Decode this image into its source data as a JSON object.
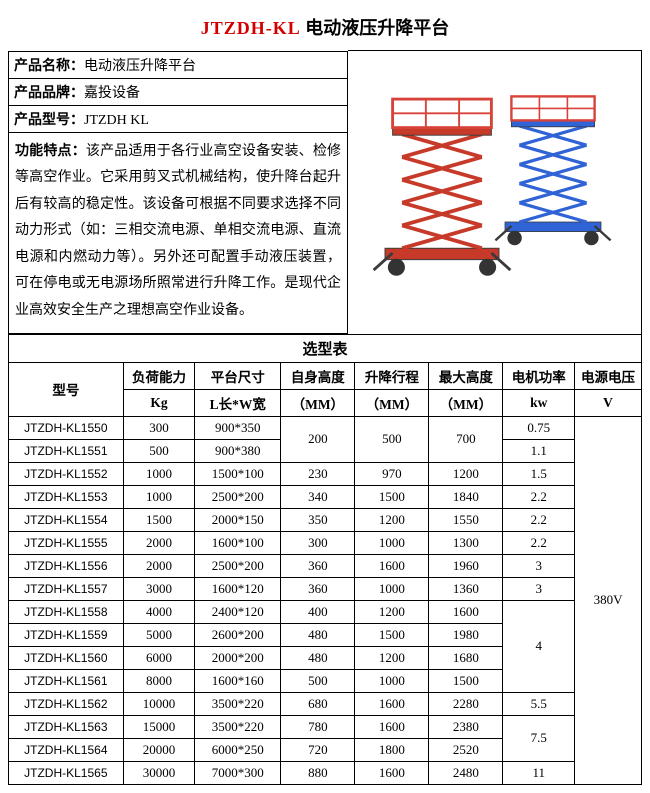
{
  "title_code": "JTZDH-KL",
  "title_cn": "电动液压升降平台",
  "info": {
    "name_label": "产品名称：",
    "name_value": "电动液压升降平台",
    "brand_label": "产品品牌：",
    "brand_value": "嘉投设备",
    "model_label": "产品型号：",
    "model_value": "JTZDH KL",
    "feat_label": "功能特点：",
    "feat_text": "该产品适用于各行业高空设备安装、检修等高空作业。它采用剪叉式机械结构，使升降台起升后有较高的稳定性。该设备可根据不同要求选择不同动力形式（如：三相交流电源、单相交流电源、直流电源和内燃动力等）。另外还可配置手动液压装置，可在停电或无电源场所照常进行升降工作。是现代企业高效安全生产之理想高空作业设备。"
  },
  "illus": {
    "lift1_color": "#c73a2a",
    "lift2_color": "#2f63d6",
    "rail_color": "#d7433a",
    "stroke": "#3a3a3a",
    "wheel": "#333333"
  },
  "spec": {
    "selection_title": "选型表",
    "headers": {
      "model": "型号",
      "load": "负荷能力",
      "size": "平台尺寸",
      "self_h": "自身高度",
      "stroke": "升降行程",
      "max_h": "最大高度",
      "power": "电机功率",
      "voltage": "电源电压"
    },
    "units": {
      "load": "Kg",
      "size": "L长*W宽",
      "self_h": "（MM）",
      "stroke": "（MM）",
      "max_h": "（MM）",
      "power": "kw",
      "voltage": "V"
    },
    "voltage_value": "380V",
    "rows": [
      {
        "model": "JTZDH-KL1550",
        "load": "300",
        "size": "900*350",
        "self_h": "200",
        "stroke": "500",
        "max_h": "700",
        "power": "0.75"
      },
      {
        "model": "JTZDH-KL1551",
        "load": "500",
        "size": "900*380",
        "self_h": "",
        "stroke": "",
        "max_h": "",
        "power": "1.1"
      },
      {
        "model": "JTZDH-KL1552",
        "load": "1000",
        "size": "1500*100",
        "self_h": "230",
        "stroke": "970",
        "max_h": "1200",
        "power": "1.5"
      },
      {
        "model": "JTZDH-KL1553",
        "load": "1000",
        "size": "2500*200",
        "self_h": "340",
        "stroke": "1500",
        "max_h": "1840",
        "power": "2.2"
      },
      {
        "model": "JTZDH-KL1554",
        "load": "1500",
        "size": "2000*150",
        "self_h": "350",
        "stroke": "1200",
        "max_h": "1550",
        "power": "2.2"
      },
      {
        "model": "JTZDH-KL1555",
        "load": "2000",
        "size": "1600*100",
        "self_h": "300",
        "stroke": "1000",
        "max_h": "1300",
        "power": "2.2"
      },
      {
        "model": "JTZDH-KL1556",
        "load": "2000",
        "size": "2500*200",
        "self_h": "360",
        "stroke": "1600",
        "max_h": "1960",
        "power": "3"
      },
      {
        "model": "JTZDH-KL1557",
        "load": "3000",
        "size": "1600*120",
        "self_h": "360",
        "stroke": "1000",
        "max_h": "1360",
        "power": "3"
      },
      {
        "model": "JTZDH-KL1558",
        "load": "4000",
        "size": "2400*120",
        "self_h": "400",
        "stroke": "1200",
        "max_h": "1600",
        "power": "4"
      },
      {
        "model": "JTZDH-KL1559",
        "load": "5000",
        "size": "2600*200",
        "self_h": "480",
        "stroke": "1500",
        "max_h": "1980",
        "power": ""
      },
      {
        "model": "JTZDH-KL1560",
        "load": "6000",
        "size": "2000*200",
        "self_h": "480",
        "stroke": "1200",
        "max_h": "1680",
        "power": ""
      },
      {
        "model": "JTZDH-KL1561",
        "load": "8000",
        "size": "1600*160",
        "self_h": "500",
        "stroke": "1000",
        "max_h": "1500",
        "power": ""
      },
      {
        "model": "JTZDH-KL1562",
        "load": "10000",
        "size": "3500*220",
        "self_h": "680",
        "stroke": "1600",
        "max_h": "2280",
        "power": "5.5"
      },
      {
        "model": "JTZDH-KL1563",
        "load": "15000",
        "size": "3500*220",
        "self_h": "780",
        "stroke": "1600",
        "max_h": "2380",
        "power": "7.5"
      },
      {
        "model": "JTZDH-KL1564",
        "load": "20000",
        "size": "6000*250",
        "self_h": "720",
        "stroke": "1800",
        "max_h": "2520",
        "power": ""
      },
      {
        "model": "JTZDH-KL1565",
        "load": "30000",
        "size": "7000*300",
        "self_h": "880",
        "stroke": "1600",
        "max_h": "2480",
        "power": "11"
      }
    ],
    "merges": {
      "self_h_row0_span2": "200",
      "stroke_row0_span2": "500",
      "max_h_row0_span2": "700",
      "power_row8_span4": "4",
      "power_row13_span2": "7.5"
    },
    "col_widths": [
      "96",
      "60",
      "72",
      "62",
      "62",
      "62",
      "60",
      "56"
    ]
  }
}
